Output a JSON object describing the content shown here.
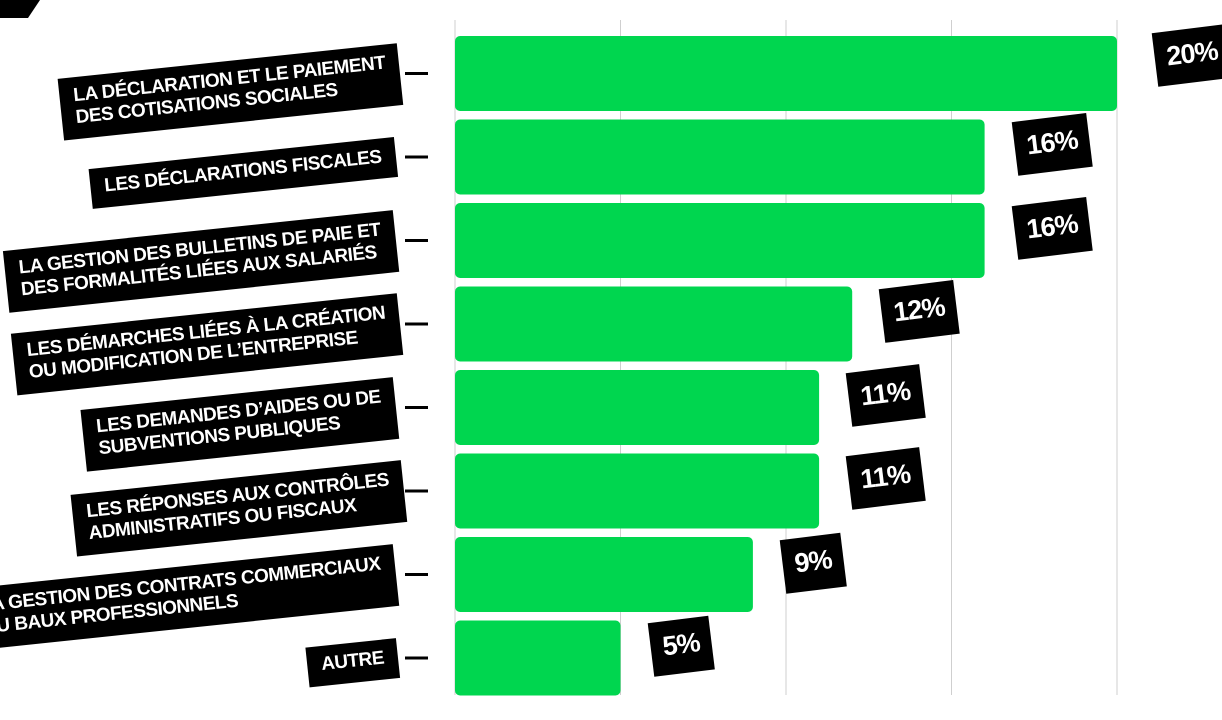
{
  "chart_data": {
    "type": "bar",
    "orientation": "horizontal",
    "categories": [
      "LA DÉCLARATION ET LE PAIEMENT\nDES COTISATIONS SOCIALES",
      "LES DÉCLARATIONS FISCALES",
      "LA GESTION DES BULLETINS DE PAIE ET\nDES FORMALITÉS LIÉES AUX SALARIÉS",
      "LES DÉMARCHES LIÉES À LA CRÉATION\nOU MODIFICATION DE L’ENTREPRISE",
      "LES DEMANDES D’AIDES OU DE\nSUBVENTIONS PUBLIQUES",
      "LES RÉPONSES AUX CONTRÔLES\nADMINISTRATIFS OU FISCAUX",
      "LA GESTION DES CONTRATS COMMERCIAUX\nOU BAUX PROFESSIONNELS",
      "AUTRE"
    ],
    "values": [
      20,
      16,
      16,
      12,
      11,
      11,
      9,
      5
    ],
    "value_labels": [
      "20%",
      "16%",
      "16%",
      "12%",
      "11%",
      "11%",
      "9%",
      "5%"
    ],
    "xlim": [
      0,
      20
    ],
    "grid": true,
    "bar_color": "#00d64f",
    "label_background": "#000000",
    "label_text_color": "#ffffff",
    "gridline_color": "#cfcfcf"
  }
}
